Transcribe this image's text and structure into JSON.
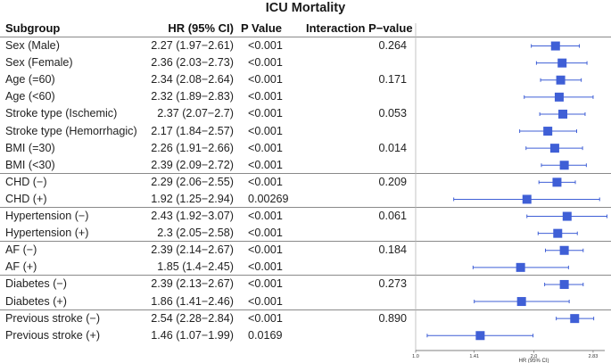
{
  "chart_data": {
    "type": "forest",
    "title": "ICU Mortality",
    "columns": [
      "Subgroup",
      "HR (95% CI)",
      "P Value",
      "Interaction P−value"
    ],
    "xlabel": "HR (95% CI)",
    "x_scale": "log",
    "xlim": [
      1.0,
      3.03
    ],
    "x_ticks": [
      "1.0",
      "1.41",
      "2.0",
      "2.83"
    ],
    "x_tick_values": [
      1.0,
      1.41,
      2.0,
      2.83
    ],
    "marker_color": "#3f5fd6",
    "rows": [
      {
        "subgroup": "Sex (Male)",
        "hr_text": "2.27 (1.97−2.61)",
        "p": "<0.001",
        "p_int": "0.264",
        "hr": 2.27,
        "lo": 1.97,
        "hi": 2.61
      },
      {
        "subgroup": "Sex (Female)",
        "hr_text": "2.36 (2.03−2.73)",
        "p": "<0.001",
        "p_int": "",
        "hr": 2.36,
        "lo": 2.03,
        "hi": 2.73
      },
      {
        "subgroup": "Age (=60)",
        "hr_text": "2.34 (2.08−2.64)",
        "p": "<0.001",
        "p_int": "0.171",
        "hr": 2.34,
        "lo": 2.08,
        "hi": 2.64
      },
      {
        "subgroup": "Age (<60)",
        "hr_text": "2.32 (1.89−2.83)",
        "p": "<0.001",
        "p_int": "",
        "hr": 2.32,
        "lo": 1.89,
        "hi": 2.83
      },
      {
        "subgroup": "Stroke type (Ischemic)",
        "hr_text": "2.37 (2.07−2.7)",
        "p": "<0.001",
        "p_int": "0.053",
        "hr": 2.37,
        "lo": 2.07,
        "hi": 2.7
      },
      {
        "subgroup": "Stroke type (Hemorrhagic)",
        "hr_text": "2.17 (1.84−2.57)",
        "p": "<0.001",
        "p_int": "",
        "hr": 2.17,
        "lo": 1.84,
        "hi": 2.57
      },
      {
        "subgroup": "BMI (=30)",
        "hr_text": "2.26 (1.91−2.66)",
        "p": "<0.001",
        "p_int": "0.014",
        "hr": 2.26,
        "lo": 1.91,
        "hi": 2.66
      },
      {
        "subgroup": "BMI (<30)",
        "hr_text": "2.39 (2.09−2.72)",
        "p": "<0.001",
        "p_int": "",
        "hr": 2.39,
        "lo": 2.09,
        "hi": 2.72
      },
      {
        "subgroup": "CHD (−)",
        "hr_text": "2.29 (2.06−2.55)",
        "p": "<0.001",
        "p_int": "0.209",
        "hr": 2.29,
        "lo": 2.06,
        "hi": 2.55
      },
      {
        "subgroup": "CHD (+)",
        "hr_text": "1.92 (1.25−2.94)",
        "p": "0.00269",
        "p_int": "",
        "hr": 1.92,
        "lo": 1.25,
        "hi": 2.94
      },
      {
        "subgroup": "Hypertension (−)",
        "hr_text": "2.43 (1.92−3.07)",
        "p": "<0.001",
        "p_int": "0.061",
        "hr": 2.43,
        "lo": 1.92,
        "hi": 3.07
      },
      {
        "subgroup": "Hypertension (+)",
        "hr_text": "2.3 (2.05−2.58)",
        "p": "<0.001",
        "p_int": "",
        "hr": 2.3,
        "lo": 2.05,
        "hi": 2.58
      },
      {
        "subgroup": "AF (−)",
        "hr_text": "2.39 (2.14−2.67)",
        "p": "<0.001",
        "p_int": "0.184",
        "hr": 2.39,
        "lo": 2.14,
        "hi": 2.67
      },
      {
        "subgroup": "AF (+)",
        "hr_text": "1.85 (1.4−2.45)",
        "p": "<0.001",
        "p_int": "",
        "hr": 1.85,
        "lo": 1.4,
        "hi": 2.45
      },
      {
        "subgroup": "Diabetes (−)",
        "hr_text": "2.39 (2.13−2.67)",
        "p": "<0.001",
        "p_int": "0.273",
        "hr": 2.39,
        "lo": 2.13,
        "hi": 2.67
      },
      {
        "subgroup": "Diabetes (+)",
        "hr_text": "1.86 (1.41−2.46)",
        "p": "<0.001",
        "p_int": "",
        "hr": 1.86,
        "lo": 1.41,
        "hi": 2.46
      },
      {
        "subgroup": "Previous stroke (−)",
        "hr_text": "2.54 (2.28−2.84)",
        "p": "<0.001",
        "p_int": "0.890",
        "hr": 2.54,
        "lo": 2.28,
        "hi": 2.84
      },
      {
        "subgroup": "Previous stroke (+)",
        "hr_text": "1.46 (1.07−1.99)",
        "p": "0.0169",
        "p_int": "",
        "hr": 1.46,
        "lo": 1.07,
        "hi": 1.99
      }
    ]
  }
}
